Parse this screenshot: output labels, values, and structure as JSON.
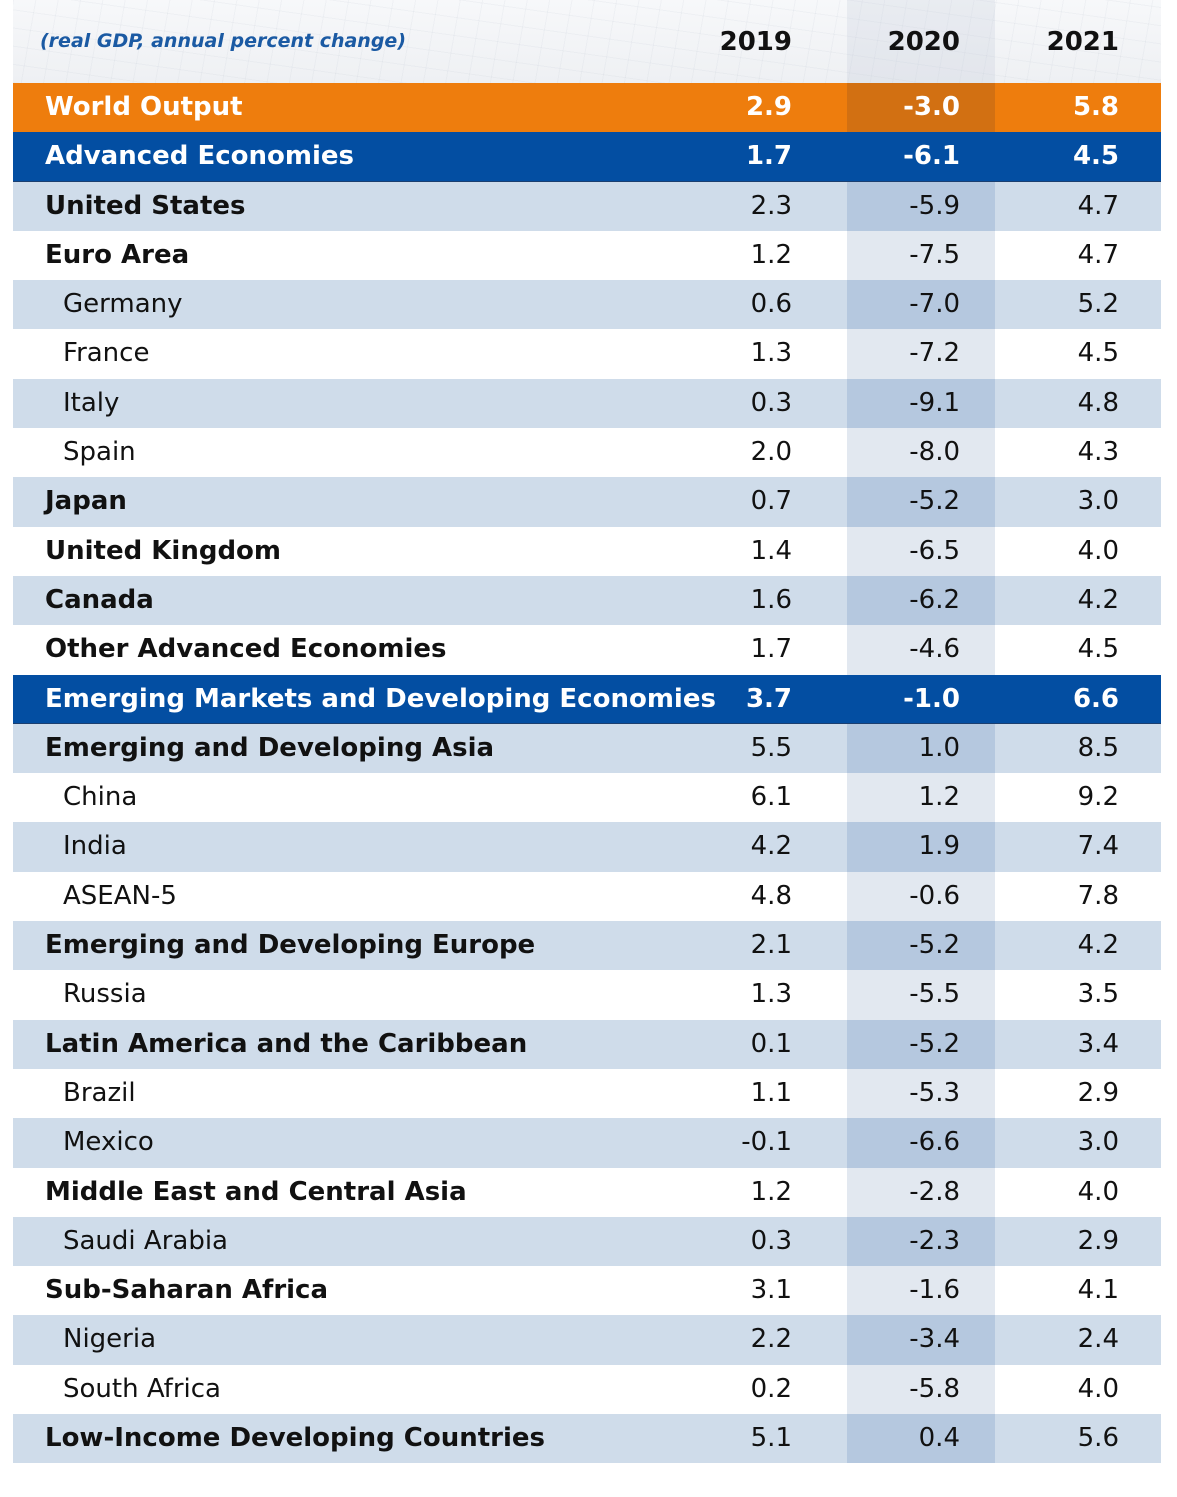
{
  "chart_data": {
    "type": "table",
    "subtitle": "(real GDP, annual percent change)",
    "columns": [
      "2019",
      "2020",
      "2021"
    ],
    "rows": [
      {
        "label": "World Output",
        "kind": "world",
        "level": 0,
        "values": [
          "2.9",
          "-3.0",
          "5.8"
        ]
      },
      {
        "label": "Advanced Economies",
        "kind": "section",
        "level": 0,
        "values": [
          "1.7",
          "-6.1",
          "4.5"
        ]
      },
      {
        "label": "United States",
        "kind": "row",
        "level": 0,
        "values": [
          "2.3",
          "-5.9",
          "4.7"
        ]
      },
      {
        "label": "Euro Area",
        "kind": "row",
        "level": 0,
        "values": [
          "1.2",
          "-7.5",
          "4.7"
        ]
      },
      {
        "label": "Germany",
        "kind": "row",
        "level": 1,
        "values": [
          "0.6",
          "-7.0",
          "5.2"
        ]
      },
      {
        "label": "France",
        "kind": "row",
        "level": 1,
        "values": [
          "1.3",
          "-7.2",
          "4.5"
        ]
      },
      {
        "label": "Italy",
        "kind": "row",
        "level": 1,
        "values": [
          "0.3",
          "-9.1",
          "4.8"
        ]
      },
      {
        "label": "Spain",
        "kind": "row",
        "level": 1,
        "values": [
          "2.0",
          "-8.0",
          "4.3"
        ]
      },
      {
        "label": "Japan",
        "kind": "row",
        "level": 0,
        "values": [
          "0.7",
          "-5.2",
          "3.0"
        ]
      },
      {
        "label": "United Kingdom",
        "kind": "row",
        "level": 0,
        "values": [
          "1.4",
          "-6.5",
          "4.0"
        ]
      },
      {
        "label": "Canada",
        "kind": "row",
        "level": 0,
        "values": [
          "1.6",
          "-6.2",
          "4.2"
        ]
      },
      {
        "label": "Other Advanced Economies",
        "kind": "row",
        "level": 0,
        "values": [
          "1.7",
          "-4.6",
          "4.5"
        ]
      },
      {
        "label": "Emerging Markets and Developing Economies",
        "kind": "section",
        "level": 0,
        "values": [
          "3.7",
          "-1.0",
          "6.6"
        ]
      },
      {
        "label": "Emerging and Developing Asia",
        "kind": "row",
        "level": 0,
        "values": [
          "5.5",
          "1.0",
          "8.5"
        ]
      },
      {
        "label": "China",
        "kind": "row",
        "level": 1,
        "values": [
          "6.1",
          "1.2",
          "9.2"
        ]
      },
      {
        "label": "India",
        "kind": "row",
        "level": 1,
        "values": [
          "4.2",
          "1.9",
          "7.4"
        ]
      },
      {
        "label": "ASEAN-5",
        "kind": "row",
        "level": 1,
        "values": [
          "4.8",
          "-0.6",
          "7.8"
        ]
      },
      {
        "label": "Emerging and Developing Europe",
        "kind": "row",
        "level": 0,
        "values": [
          "2.1",
          "-5.2",
          "4.2"
        ]
      },
      {
        "label": "Russia",
        "kind": "row",
        "level": 1,
        "values": [
          "1.3",
          "-5.5",
          "3.5"
        ]
      },
      {
        "label": "Latin America and the Caribbean",
        "kind": "row",
        "level": 0,
        "values": [
          "0.1",
          "-5.2",
          "3.4"
        ]
      },
      {
        "label": "Brazil",
        "kind": "row",
        "level": 1,
        "values": [
          "1.1",
          "-5.3",
          "2.9"
        ]
      },
      {
        "label": "Mexico",
        "kind": "row",
        "level": 1,
        "values": [
          "-0.1",
          "-6.6",
          "3.0"
        ]
      },
      {
        "label": "Middle East and Central Asia",
        "kind": "row",
        "level": 0,
        "values": [
          "1.2",
          "-2.8",
          "4.0"
        ]
      },
      {
        "label": "Saudi Arabia",
        "kind": "row",
        "level": 1,
        "values": [
          "0.3",
          "-2.3",
          "2.9"
        ]
      },
      {
        "label": "Sub-Saharan Africa",
        "kind": "row",
        "level": 0,
        "values": [
          "3.1",
          "-1.6",
          "4.1"
        ]
      },
      {
        "label": "Nigeria",
        "kind": "row",
        "level": 1,
        "values": [
          "2.2",
          "-3.4",
          "2.4"
        ]
      },
      {
        "label": "South Africa",
        "kind": "row",
        "level": 1,
        "values": [
          "0.2",
          "-5.8",
          "4.0"
        ]
      },
      {
        "label": "Low-Income Developing Countries",
        "kind": "row",
        "level": 0,
        "values": [
          "5.1",
          "0.4",
          "5.6"
        ]
      }
    ]
  },
  "colors": {
    "world_row": "#ee7d0d",
    "section_row": "#034ea2",
    "stripe_light": "#cfdcea",
    "subtitle_text": "#1b5aa3"
  }
}
